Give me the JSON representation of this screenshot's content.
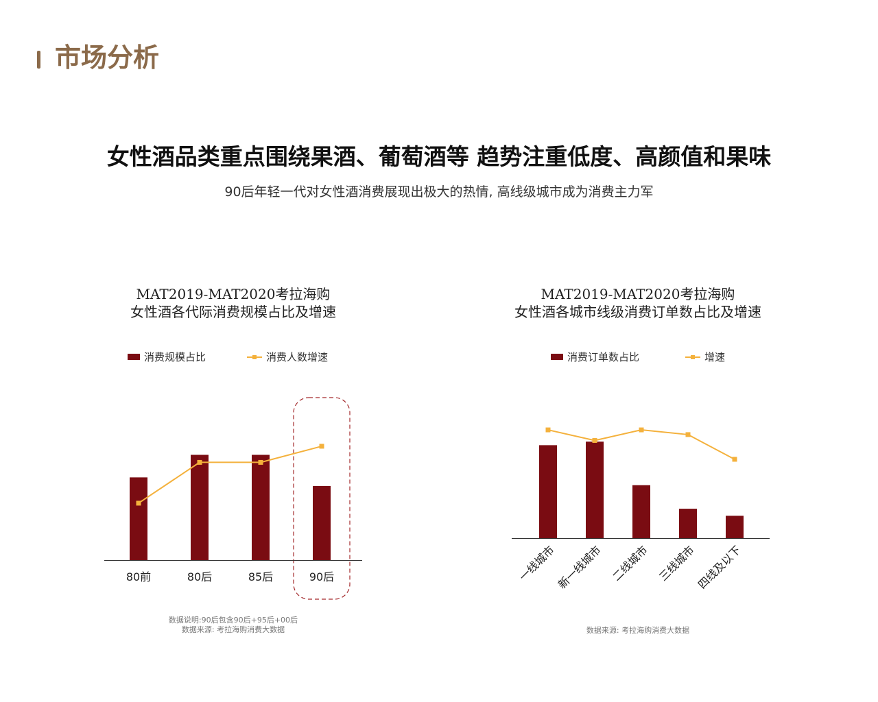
{
  "header": {
    "section_title": "市场分析"
  },
  "headline": "女性酒品类重点围绕果酒、葡萄酒等 趋势注重低度、高颜值和果味",
  "subline": "90后年轻一代对女性酒消费展现出极大的热情, 高线级城市成为消费主力军",
  "colors": {
    "bar": "#7a0c12",
    "line": "#f4b13c",
    "accent": "#8b6a4a",
    "highlight_border": "#a3282b"
  },
  "chart_data": [
    {
      "type": "bar",
      "title_lines": [
        "MAT2019-MAT2020考拉海购",
        "女性酒各代际消费规模占比及增速"
      ],
      "title": "MAT2019-MAT2020考拉海购 女性酒各代际消费规模占比及增速",
      "categories": [
        "80前",
        "80后",
        "85后",
        "90后"
      ],
      "series": [
        {
          "name": "消费规模占比",
          "type": "bar",
          "values": [
            0.77,
            0.98,
            0.98,
            0.69
          ]
        },
        {
          "name": "消费人数增速",
          "type": "line",
          "values": [
            0.53,
            0.91,
            0.91,
            1.06
          ]
        }
      ],
      "ylim": [
        0,
        1.2
      ],
      "highlight_category": "90后",
      "grid": false,
      "legend_position": "top-center",
      "notes": [
        "数据说明:90后包含90后+95后+00后",
        "数据来源: 考拉海购消费大数据"
      ]
    },
    {
      "type": "bar",
      "title_lines": [
        "MAT2019-MAT2020考拉海购",
        "女性酒各城市线级消费订单数占比及增速"
      ],
      "title": "MAT2019-MAT2020考拉海购 女性酒各城市线级消费订单数占比及增速",
      "categories": [
        "一线城市",
        "新一线城市",
        "二线城市",
        "三线城市",
        "四线及以下"
      ],
      "series": [
        {
          "name": "消费订单数占比",
          "type": "bar",
          "values": [
            0.79,
            0.82,
            0.45,
            0.25,
            0.19
          ]
        },
        {
          "name": "增速",
          "type": "line",
          "values": [
            0.92,
            0.83,
            0.92,
            0.88,
            0.67
          ]
        }
      ],
      "ylim": [
        0,
        1.2
      ],
      "grid": false,
      "legend_position": "top-center",
      "notes": [
        "数据来源: 考拉海购消费大数据"
      ]
    }
  ]
}
